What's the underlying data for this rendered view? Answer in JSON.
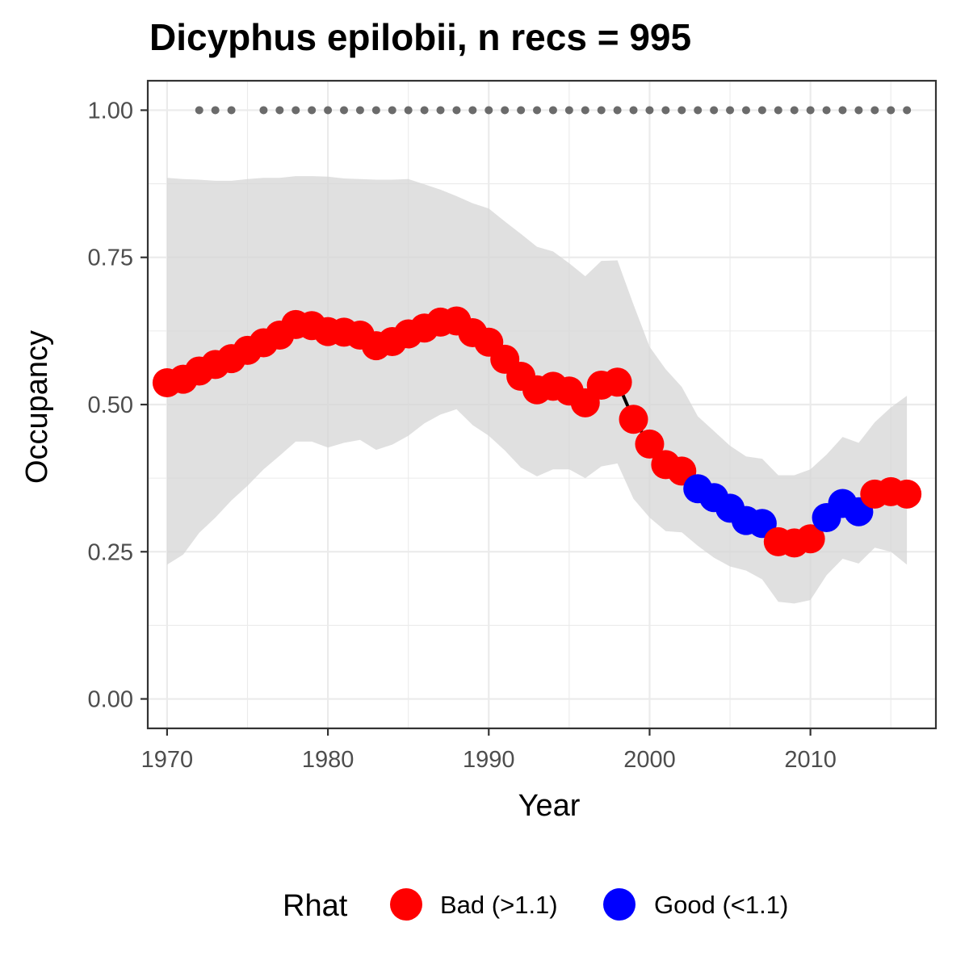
{
  "chart_data": {
    "type": "line",
    "title": "Dicyphus epilobii, n recs = 995",
    "xlabel": "Year",
    "ylabel": "Occupancy",
    "xlim": [
      1968.8,
      2017.8
    ],
    "ylim": [
      -0.05,
      1.05
    ],
    "x_ticks": [
      1970,
      1980,
      1990,
      2000,
      2010
    ],
    "x_tick_labels": [
      "1970",
      "1980",
      "1990",
      "2000",
      "2010"
    ],
    "y_ticks": [
      0,
      0.25,
      0.5,
      0.75,
      1.0
    ],
    "y_tick_labels": [
      "0.00",
      "0.25",
      "0.50",
      "0.75",
      "1.00"
    ],
    "grid": true,
    "legend": {
      "title": "Rhat",
      "position": "bottom",
      "entries": [
        {
          "label": "Bad (>1.1)",
          "color": "#ff0000"
        },
        {
          "label": "Good (<1.1)",
          "color": "#0000ff"
        }
      ]
    },
    "colors": {
      "bad": "#ff0000",
      "good": "#0000ff",
      "ribbon": "#d6d6d6",
      "line": "#000000",
      "record_dots": "#6b6b6b"
    },
    "series": [
      {
        "name": "Rhat",
        "x": [
          1970,
          1971,
          1972,
          1973,
          1974,
          1975,
          1976,
          1977,
          1978,
          1979,
          1980,
          1981,
          1982,
          1983,
          1984,
          1985,
          1986,
          1987,
          1988,
          1989,
          1990,
          1991,
          1992,
          1993,
          1994,
          1995,
          1996,
          1997,
          1998,
          1999,
          2000,
          2001,
          2002,
          2003,
          2004,
          2005,
          2006,
          2007,
          2008,
          2009,
          2010,
          2011,
          2012,
          2013,
          2014,
          2015,
          2016
        ],
        "y": [
          0.537,
          0.543,
          0.557,
          0.568,
          0.578,
          0.592,
          0.605,
          0.618,
          0.636,
          0.634,
          0.624,
          0.623,
          0.618,
          0.6,
          0.607,
          0.62,
          0.63,
          0.64,
          0.642,
          0.622,
          0.606,
          0.577,
          0.548,
          0.525,
          0.531,
          0.523,
          0.503,
          0.533,
          0.538,
          0.475,
          0.433,
          0.398,
          0.387,
          0.357,
          0.342,
          0.324,
          0.303,
          0.298,
          0.267,
          0.265,
          0.272,
          0.308,
          0.332,
          0.318,
          0.348,
          0.352,
          0.348
        ],
        "rhat_class": [
          "bad",
          "bad",
          "bad",
          "bad",
          "bad",
          "bad",
          "bad",
          "bad",
          "bad",
          "bad",
          "bad",
          "bad",
          "bad",
          "bad",
          "bad",
          "bad",
          "bad",
          "bad",
          "bad",
          "bad",
          "bad",
          "bad",
          "bad",
          "bad",
          "bad",
          "bad",
          "bad",
          "bad",
          "bad",
          "bad",
          "bad",
          "bad",
          "bad",
          "good",
          "good",
          "good",
          "good",
          "good",
          "bad",
          "bad",
          "bad",
          "good",
          "good",
          "good",
          "bad",
          "bad",
          "bad"
        ],
        "lower": [
          0.228,
          0.245,
          0.282,
          0.308,
          0.337,
          0.362,
          0.39,
          0.413,
          0.437,
          0.437,
          0.427,
          0.435,
          0.44,
          0.423,
          0.432,
          0.447,
          0.468,
          0.483,
          0.492,
          0.465,
          0.447,
          0.422,
          0.393,
          0.378,
          0.39,
          0.39,
          0.375,
          0.395,
          0.4,
          0.34,
          0.308,
          0.285,
          0.283,
          0.26,
          0.24,
          0.225,
          0.218,
          0.203,
          0.165,
          0.162,
          0.168,
          0.21,
          0.238,
          0.23,
          0.257,
          0.25,
          0.228
        ],
        "upper": [
          0.885,
          0.883,
          0.882,
          0.88,
          0.88,
          0.883,
          0.885,
          0.885,
          0.888,
          0.888,
          0.887,
          0.884,
          0.883,
          0.882,
          0.882,
          0.883,
          0.874,
          0.865,
          0.854,
          0.842,
          0.833,
          0.811,
          0.79,
          0.768,
          0.76,
          0.74,
          0.718,
          0.744,
          0.745,
          0.67,
          0.598,
          0.56,
          0.53,
          0.48,
          0.455,
          0.43,
          0.412,
          0.408,
          0.38,
          0.38,
          0.39,
          0.415,
          0.445,
          0.435,
          0.47,
          0.495,
          0.515
        ]
      }
    ],
    "record_years": [
      1972,
      1973,
      1974,
      1976,
      1977,
      1978,
      1979,
      1980,
      1981,
      1982,
      1983,
      1984,
      1985,
      1986,
      1987,
      1988,
      1989,
      1990,
      1991,
      1992,
      1993,
      1994,
      1995,
      1996,
      1997,
      1998,
      1999,
      2000,
      2001,
      2002,
      2003,
      2004,
      2005,
      2006,
      2007,
      2008,
      2009,
      2010,
      2011,
      2012,
      2013,
      2014,
      2015,
      2016
    ],
    "record_level": 1.0
  }
}
